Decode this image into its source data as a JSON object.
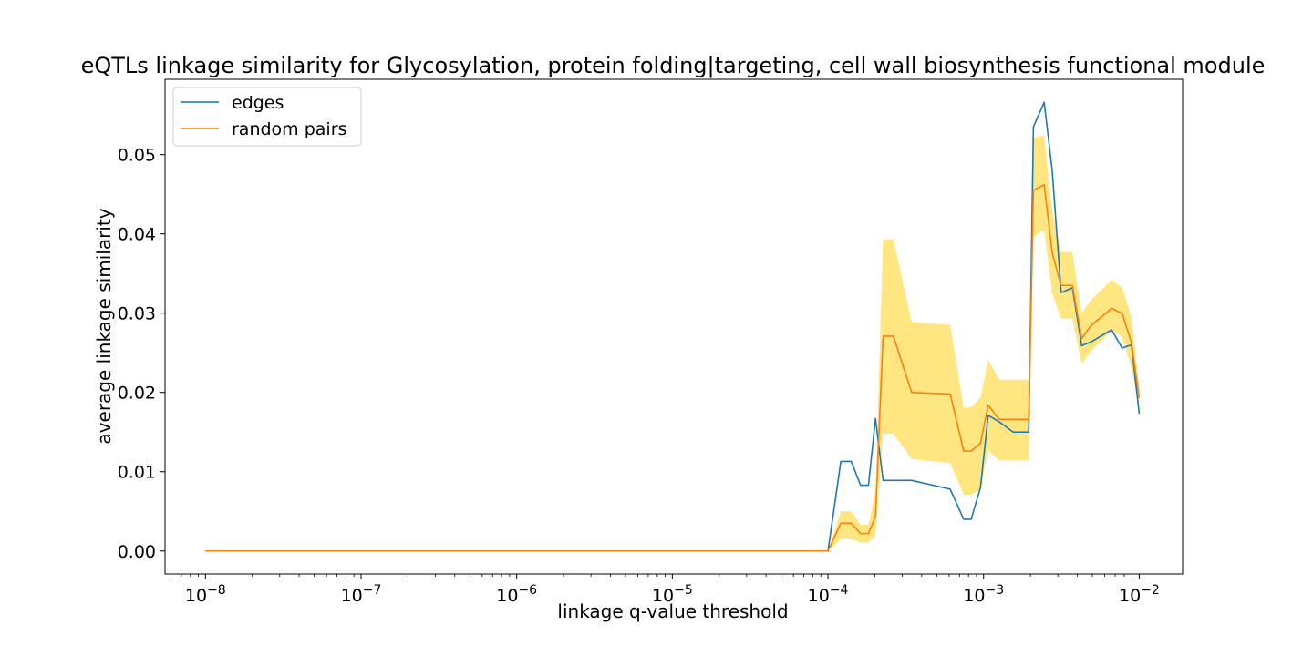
{
  "chart_data": {
    "type": "line",
    "title": "eQTLs linkage similarity for Glycosylation, protein folding|targeting, cell wall biosynthesis functional module",
    "xlabel": "linkage q-value threshold",
    "ylabel": "average linkage similarity",
    "x_scale": "log",
    "xlim": [
      5.5e-09,
      0.019
    ],
    "ylim": [
      -0.0029,
      0.0595
    ],
    "x_ticks": [
      {
        "value": 1e-08,
        "base": "10",
        "exp": "−8"
      },
      {
        "value": 1e-07,
        "base": "10",
        "exp": "−7"
      },
      {
        "value": 1e-06,
        "base": "10",
        "exp": "−6"
      },
      {
        "value": 1e-05,
        "base": "10",
        "exp": "−5"
      },
      {
        "value": 0.0001,
        "base": "10",
        "exp": "−4"
      },
      {
        "value": 0.001,
        "base": "10",
        "exp": "−3"
      },
      {
        "value": 0.01,
        "base": "10",
        "exp": "−2"
      }
    ],
    "y_ticks": [
      {
        "value": 0.0,
        "label": "0.00"
      },
      {
        "value": 0.01,
        "label": "0.01"
      },
      {
        "value": 0.02,
        "label": "0.02"
      },
      {
        "value": 0.03,
        "label": "0.03"
      },
      {
        "value": 0.04,
        "label": "0.04"
      },
      {
        "value": 0.05,
        "label": "0.05"
      }
    ],
    "grid": false,
    "legend": {
      "position": "top-left"
    },
    "x": [
      1e-08,
      0.0001,
      0.000121,
      0.000141,
      0.000162,
      0.000182,
      0.000202,
      0.000226,
      0.000263,
      0.000345,
      0.00061,
      0.000745,
      0.000832,
      0.000955,
      0.00107,
      0.00126,
      0.00155,
      0.00195,
      0.00209,
      0.00245,
      0.00276,
      0.00315,
      0.00372,
      0.00427,
      0.00493,
      0.00665,
      0.00776,
      0.00891,
      0.01
    ],
    "series": [
      {
        "name": "edges",
        "color": "#1f77b4",
        "values": [
          0.0,
          0.0,
          0.0113,
          0.0113,
          0.0083,
          0.0083,
          0.0167,
          0.0089,
          0.0089,
          0.0089,
          0.0078,
          0.004,
          0.004,
          0.008,
          0.0171,
          0.0163,
          0.015,
          0.015,
          0.0535,
          0.0566,
          0.048,
          0.0326,
          0.0332,
          0.0259,
          0.0264,
          0.0279,
          0.0256,
          0.026,
          0.0173
        ]
      },
      {
        "name": "random pairs",
        "color": "#ff7f0e",
        "values": [
          0.0,
          0.0,
          0.0035,
          0.0035,
          0.0022,
          0.0022,
          0.0044,
          0.0271,
          0.0271,
          0.02,
          0.0198,
          0.0126,
          0.0126,
          0.0136,
          0.0184,
          0.0166,
          0.0166,
          0.0166,
          0.0455,
          0.0462,
          0.0376,
          0.0335,
          0.0335,
          0.0268,
          0.0285,
          0.0306,
          0.03,
          0.0263,
          0.0193
        ]
      }
    ],
    "band": {
      "series": "random pairs",
      "color": "#ffe680",
      "lower": [
        0.0,
        0.0,
        0.0015,
        0.0015,
        0.0011,
        0.0011,
        0.002,
        0.0148,
        0.0148,
        0.0116,
        0.0111,
        0.0071,
        0.0071,
        0.0077,
        0.0127,
        0.0114,
        0.0114,
        0.0114,
        0.0396,
        0.0405,
        0.0325,
        0.0293,
        0.0293,
        0.0236,
        0.0253,
        0.0278,
        0.027,
        0.0231,
        0.0181
      ],
      "upper": [
        0.0,
        0.0,
        0.005,
        0.005,
        0.0033,
        0.0033,
        0.0075,
        0.0393,
        0.0393,
        0.0289,
        0.0285,
        0.0181,
        0.0181,
        0.0194,
        0.0241,
        0.0216,
        0.0216,
        0.0216,
        0.0521,
        0.0524,
        0.0429,
        0.0377,
        0.0377,
        0.03,
        0.0317,
        0.0342,
        0.0332,
        0.0296,
        0.0206
      ]
    }
  }
}
